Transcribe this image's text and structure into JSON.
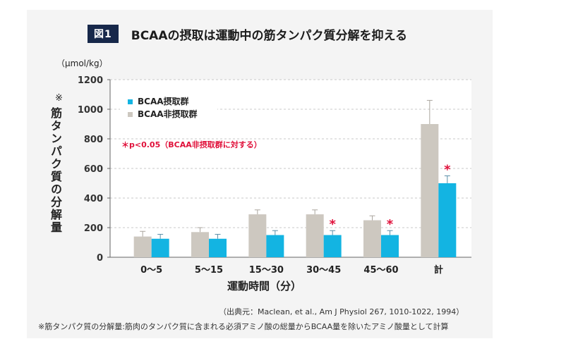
{
  "figure": {
    "badge": "図1",
    "title": "BCAAの摂取は運動中の筋タンパク質分解を抑える"
  },
  "axis": {
    "unit": "（μmol/kg）",
    "y_note": "※",
    "y_label": "筋タンパク質の分解量",
    "x_label": "運動時間（分）"
  },
  "significance_note": "＊p<0.05（BCAA非摂取群に対する）",
  "star_symbol": "＊",
  "source": "（出典元：Maclean, et al., Am J Physiol 267, 1010-1022, 1994）",
  "footnote": "※筋タンパク質の分解量:筋肉のタンパク質に含まれる必須アミノ酸の総量からBCAA量を除いたアミノ酸量として計算",
  "colors": {
    "non_bcaa": "#cdc8c0",
    "bcaa": "#13b4e2",
    "star": "#e0103a",
    "badge": "#17284a"
  },
  "chart_data": {
    "type": "bar",
    "categories": [
      "0〜5",
      "5〜15",
      "15〜30",
      "30〜45",
      "45〜60",
      "計"
    ],
    "series": [
      {
        "name": "BCAA非摂取群",
        "values": [
          140,
          170,
          290,
          290,
          250,
          900
        ],
        "errors": [
          35,
          30,
          30,
          30,
          30,
          160
        ]
      },
      {
        "name": "BCAA摂取群",
        "values": [
          125,
          125,
          150,
          150,
          150,
          500
        ],
        "errors": [
          30,
          30,
          30,
          30,
          30,
          50
        ]
      }
    ],
    "significant": [
      false,
      false,
      false,
      true,
      true,
      true
    ],
    "yticks": [
      0,
      200,
      400,
      600,
      800,
      1000,
      1200
    ],
    "ylim": [
      0,
      1200
    ],
    "grid": true,
    "legend": [
      "BCAA摂取群",
      "BCAA非摂取群"
    ],
    "legend_position": "top-left"
  }
}
